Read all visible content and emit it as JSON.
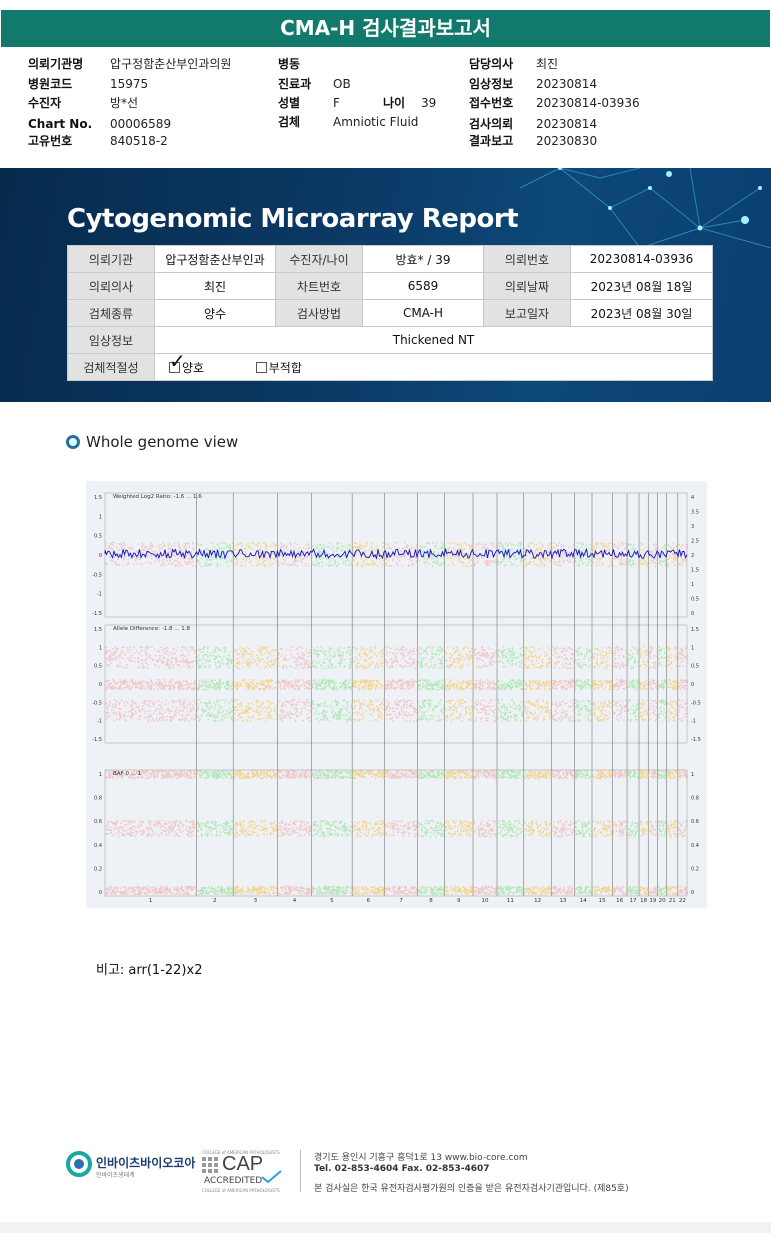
{
  "title": "CMA-H 검사결과보고서",
  "header": {
    "hospital_label": "의뢰기관명",
    "hospital": "압구정함춘산부인과의원",
    "ward_label": "병동",
    "ward": "",
    "doctor_label": "담당의사",
    "doctor": "최진",
    "code_label": "병원코드",
    "code": "15975",
    "dept_label": "진료과",
    "dept": "OB",
    "clinical_label": "임상정보",
    "clinical": "20230814",
    "patient_label": "수진자",
    "patient": "방*선",
    "sex_label": "성별",
    "sex": "F",
    "age_label": "나이",
    "age": "39",
    "receipt_label": "접수번호",
    "receipt": "20230814-03936",
    "chart_label": "Chart No.",
    "chart": "00006589",
    "specimen_label": "검체",
    "specimen": "Amniotic Fluid",
    "request_label": "검사의뢰",
    "request": "20230814",
    "uid_label": "고유번호",
    "uid": "840518-2",
    "result_label": "결과보고",
    "result": "20230830"
  },
  "report": {
    "title": "Cytogenomic Microarray Report",
    "rows": [
      [
        "의뢰기관",
        "압구정함춘산부인과",
        "수진자/나이",
        "방효* / 39",
        "의뢰번호",
        "20230814-03936"
      ],
      [
        "의뢰의사",
        "최진",
        "차트번호",
        "6589",
        "의뢰날짜",
        "2023년 08월 18일"
      ],
      [
        "검체종류",
        "양수",
        "검사방법",
        "CMA-H",
        "보고일자",
        "2023년 08월 30일"
      ]
    ],
    "clinical_label": "임상정보",
    "clinical_value": "Thickened NT",
    "adequacy_label": "검체적절성",
    "adequacy_good": "양호",
    "adequacy_bad": "부적합",
    "checkmark": "✓"
  },
  "section_title": "Whole genome view",
  "plot": {
    "panel1_label": "Weighted Log2 Ratio: -1.6 ... 1.6",
    "panel2_label": "Allele Difference: -1.8 ... 1.8",
    "panel3_label": "BAF 0 ... 1",
    "panel1_left_ticks": [
      "1.5",
      "1",
      "0.5",
      "0",
      "-0.5",
      "-1",
      "-1.5"
    ],
    "panel1_right_ticks": [
      "4",
      "3.5",
      "3",
      "2.5",
      "2",
      "1.5",
      "1",
      "0.5",
      "0"
    ],
    "panel2_left_ticks": [
      "1.5",
      "1",
      "0.5",
      "0",
      "-0.5",
      "-1",
      "-1.5"
    ],
    "panel2_right_ticks": [
      "1.5",
      "1",
      "0.5",
      "0",
      "-0.5",
      "-1",
      "-1.5"
    ],
    "panel3_left_ticks": [
      "1",
      "0.8",
      "0.6",
      "0.4",
      "0.2",
      "0"
    ],
    "panel3_right_ticks": [
      "1",
      "0.8",
      "0.6",
      "0.4",
      "0.2",
      "0"
    ],
    "chromosomes": [
      "1",
      "2",
      "3",
      "4",
      "5",
      "6",
      "7",
      "8",
      "9",
      "10",
      "11",
      "12",
      "13",
      "14",
      "15",
      "16",
      "17",
      "18",
      "19",
      "20",
      "21",
      "22"
    ],
    "colors": {
      "pink": "#f4a0a0",
      "green": "#7ee07e",
      "orange": "#f8bb3c",
      "blue": "#1010c8",
      "bg": "#eef1f6"
    }
  },
  "note": "비고: arr(1-22)x2",
  "footer": {
    "company": "인바이츠바이오코아",
    "company_sub": "인바이츠생태계",
    "cap_top": "COLLEGE of AMERICAN PATHOLOGISTS",
    "cap_main": "CAP",
    "cap_sub": "ACCREDITED",
    "cap_bottom": "COLLEGE of AMERICAN PATHOLOGISTS",
    "address": "경기도 용인시 기흥구 흥덕1로 13   www.bio-core.com",
    "phone": "Tel. 02-853-4604   Fax. 02-853-4607",
    "cert": "본 검사실은 한국 유전자검사평가원의 인증을 받은 유전자검사기관입니다. (제85호)"
  }
}
